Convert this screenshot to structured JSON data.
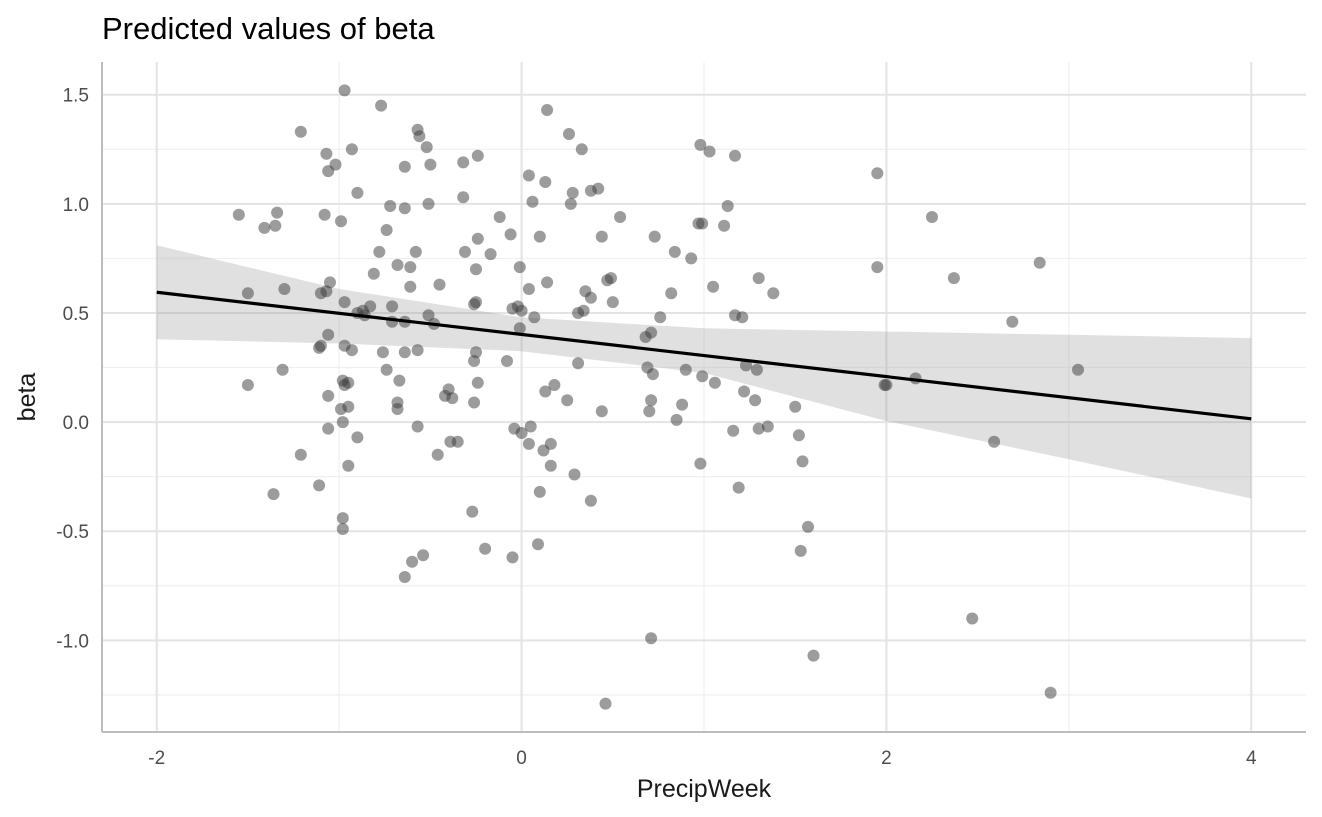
{
  "chart_data": {
    "type": "scatter",
    "title": "Predicted values of beta",
    "xlabel": "PrecipWeek",
    "ylabel": "beta",
    "xlim": [
      -2.3,
      4.3
    ],
    "ylim": [
      -1.42,
      1.65
    ],
    "x_ticks": [
      -2,
      0,
      2,
      4
    ],
    "x_tick_labels": [
      "-2",
      "0",
      "2",
      "4"
    ],
    "y_ticks": [
      1.5,
      1.0,
      0.5,
      0.0,
      -0.5,
      -1.0
    ],
    "y_tick_labels": [
      "1.5",
      "1.0",
      "0.5",
      "0.0",
      "-0.5",
      "-1.0"
    ],
    "grid": true,
    "points": [
      [
        -0.97,
        1.52
      ],
      [
        -0.77,
        1.45
      ],
      [
        -1.21,
        1.33
      ],
      [
        -0.57,
        1.34
      ],
      [
        0.14,
        1.43
      ],
      [
        -1.07,
        1.23
      ],
      [
        -0.93,
        1.25
      ],
      [
        -0.52,
        1.26
      ],
      [
        -0.56,
        1.31
      ],
      [
        0.26,
        1.32
      ],
      [
        0.33,
        1.25
      ],
      [
        0.98,
        1.27
      ],
      [
        1.03,
        1.24
      ],
      [
        1.17,
        1.22
      ],
      [
        -0.24,
        1.22
      ],
      [
        -0.32,
        1.19
      ],
      [
        -1.02,
        1.18
      ],
      [
        -1.06,
        1.15
      ],
      [
        -0.64,
        1.17
      ],
      [
        -0.5,
        1.18
      ],
      [
        0.04,
        1.13
      ],
      [
        0.13,
        1.1
      ],
      [
        1.95,
        1.14
      ],
      [
        -0.9,
        1.05
      ],
      [
        0.28,
        1.05
      ],
      [
        0.38,
        1.06
      ],
      [
        0.42,
        1.07
      ],
      [
        -0.32,
        1.03
      ],
      [
        -0.72,
        0.99
      ],
      [
        -0.64,
        0.98
      ],
      [
        -0.51,
        1.0
      ],
      [
        0.06,
        1.01
      ],
      [
        0.27,
        1.0
      ],
      [
        1.13,
        0.99
      ],
      [
        -1.55,
        0.95
      ],
      [
        -1.34,
        0.96
      ],
      [
        -1.08,
        0.95
      ],
      [
        -0.99,
        0.92
      ],
      [
        -1.41,
        0.89
      ],
      [
        -1.35,
        0.9
      ],
      [
        -0.12,
        0.94
      ],
      [
        0.54,
        0.94
      ],
      [
        0.97,
        0.91
      ],
      [
        0.99,
        0.91
      ],
      [
        1.11,
        0.9
      ],
      [
        2.25,
        0.94
      ],
      [
        -0.74,
        0.88
      ],
      [
        -0.06,
        0.86
      ],
      [
        -0.24,
        0.84
      ],
      [
        0.1,
        0.85
      ],
      [
        0.44,
        0.85
      ],
      [
        0.73,
        0.85
      ],
      [
        -0.78,
        0.78
      ],
      [
        -0.58,
        0.78
      ],
      [
        -0.31,
        0.78
      ],
      [
        -0.17,
        0.77
      ],
      [
        0.84,
        0.78
      ],
      [
        0.93,
        0.75
      ],
      [
        -0.68,
        0.72
      ],
      [
        -0.61,
        0.71
      ],
      [
        -0.25,
        0.7
      ],
      [
        -0.01,
        0.71
      ],
      [
        1.95,
        0.71
      ],
      [
        2.84,
        0.73
      ],
      [
        -1.05,
        0.64
      ],
      [
        -0.81,
        0.68
      ],
      [
        0.14,
        0.64
      ],
      [
        0.49,
        0.66
      ],
      [
        0.47,
        0.65
      ],
      [
        0.68,
        0.39
      ],
      [
        1.3,
        0.66
      ],
      [
        2.37,
        0.66
      ],
      [
        -1.5,
        0.59
      ],
      [
        -1.3,
        0.61
      ],
      [
        -1.1,
        0.59
      ],
      [
        -1.07,
        0.6
      ],
      [
        -0.61,
        0.62
      ],
      [
        -0.45,
        0.63
      ],
      [
        0.04,
        0.61
      ],
      [
        0.35,
        0.6
      ],
      [
        0.38,
        0.57
      ],
      [
        0.5,
        0.55
      ],
      [
        0.82,
        0.59
      ],
      [
        1.05,
        0.62
      ],
      [
        1.38,
        0.59
      ],
      [
        -0.97,
        0.55
      ],
      [
        -0.83,
        0.53
      ],
      [
        -0.87,
        0.51
      ],
      [
        -0.71,
        0.53
      ],
      [
        -0.86,
        0.49
      ],
      [
        -0.9,
        0.5
      ],
      [
        -0.25,
        0.55
      ],
      [
        -0.26,
        0.54
      ],
      [
        -0.05,
        0.52
      ],
      [
        -0.02,
        0.53
      ],
      [
        0.0,
        0.51
      ],
      [
        0.07,
        0.48
      ],
      [
        0.31,
        0.5
      ],
      [
        0.34,
        0.51
      ],
      [
        0.76,
        0.48
      ],
      [
        1.17,
        0.49
      ],
      [
        1.21,
        0.48
      ],
      [
        2.69,
        0.46
      ],
      [
        -1.06,
        0.4
      ],
      [
        -1.1,
        0.35
      ],
      [
        -1.11,
        0.34
      ],
      [
        -0.97,
        0.35
      ],
      [
        -0.93,
        0.33
      ],
      [
        -0.76,
        0.32
      ],
      [
        -0.71,
        0.46
      ],
      [
        -0.64,
        0.46
      ],
      [
        -0.64,
        0.32
      ],
      [
        -0.57,
        0.33
      ],
      [
        -0.48,
        0.45
      ],
      [
        -0.51,
        0.49
      ],
      [
        -0.25,
        0.32
      ],
      [
        -0.26,
        0.28
      ],
      [
        -0.08,
        0.28
      ],
      [
        -0.01,
        0.43
      ],
      [
        0.31,
        0.27
      ],
      [
        0.71,
        0.41
      ],
      [
        0.69,
        0.25
      ],
      [
        0.72,
        0.22
      ],
      [
        0.9,
        0.24
      ],
      [
        0.99,
        0.21
      ],
      [
        1.23,
        0.26
      ],
      [
        1.29,
        0.24
      ],
      [
        -1.5,
        0.17
      ],
      [
        -1.31,
        0.24
      ],
      [
        -0.74,
        0.24
      ],
      [
        -0.98,
        0.19
      ],
      [
        -0.97,
        0.17
      ],
      [
        -0.95,
        0.18
      ],
      [
        -0.67,
        0.19
      ],
      [
        -0.4,
        0.15
      ],
      [
        -0.42,
        0.12
      ],
      [
        -0.38,
        0.11
      ],
      [
        -0.24,
        0.18
      ],
      [
        0.13,
        0.14
      ],
      [
        0.18,
        0.17
      ],
      [
        0.25,
        0.1
      ],
      [
        1.06,
        0.18
      ],
      [
        1.22,
        0.14
      ],
      [
        1.28,
        0.1
      ],
      [
        1.99,
        0.17
      ],
      [
        2.0,
        0.17
      ],
      [
        2.16,
        0.2
      ],
      [
        3.05,
        0.24
      ],
      [
        -1.06,
        0.12
      ],
      [
        -0.99,
        0.06
      ],
      [
        -0.95,
        0.07
      ],
      [
        -0.98,
        0.0
      ],
      [
        -1.06,
        -0.03
      ],
      [
        -0.9,
        -0.07
      ],
      [
        -0.68,
        0.06
      ],
      [
        -0.68,
        0.09
      ],
      [
        -0.57,
        -0.02
      ],
      [
        -0.26,
        0.09
      ],
      [
        -0.04,
        -0.03
      ],
      [
        0.0,
        -0.05
      ],
      [
        0.05,
        -0.02
      ],
      [
        0.04,
        -0.1
      ],
      [
        0.12,
        -0.13
      ],
      [
        0.16,
        -0.1
      ],
      [
        0.44,
        0.05
      ],
      [
        0.7,
        0.05
      ],
      [
        0.71,
        0.1
      ],
      [
        0.85,
        0.01
      ],
      [
        0.88,
        0.08
      ],
      [
        1.16,
        -0.04
      ],
      [
        1.3,
        -0.03
      ],
      [
        1.35,
        -0.02
      ],
      [
        1.5,
        0.07
      ],
      [
        1.52,
        -0.06
      ],
      [
        -1.21,
        -0.15
      ],
      [
        -0.95,
        -0.2
      ],
      [
        -0.46,
        -0.15
      ],
      [
        -0.39,
        -0.09
      ],
      [
        -0.35,
        -0.09
      ],
      [
        0.98,
        -0.19
      ],
      [
        1.54,
        -0.18
      ],
      [
        2.59,
        -0.09
      ],
      [
        -1.11,
        -0.29
      ],
      [
        -1.36,
        -0.33
      ],
      [
        0.1,
        -0.32
      ],
      [
        0.16,
        -0.2
      ],
      [
        0.29,
        -0.24
      ],
      [
        0.38,
        -0.36
      ],
      [
        1.19,
        -0.3
      ],
      [
        -0.98,
        -0.44
      ],
      [
        -0.98,
        -0.49
      ],
      [
        -0.27,
        -0.41
      ],
      [
        1.57,
        -0.48
      ],
      [
        -0.2,
        -0.58
      ],
      [
        -0.05,
        -0.62
      ],
      [
        0.09,
        -0.56
      ],
      [
        -0.54,
        -0.61
      ],
      [
        -0.6,
        -0.64
      ],
      [
        -0.64,
        -0.71
      ],
      [
        1.53,
        -0.59
      ],
      [
        0.71,
        -0.99
      ],
      [
        2.47,
        -0.9
      ],
      [
        1.6,
        -1.07
      ],
      [
        2.9,
        -1.24
      ],
      [
        0.46,
        -1.29
      ]
    ],
    "fit_line": {
      "x": [
        -2,
        4
      ],
      "y": [
        0.595,
        0.015
      ]
    },
    "confidence_band": {
      "x": [
        -2,
        -1,
        0,
        1,
        2,
        3,
        4
      ],
      "upper": [
        0.81,
        0.61,
        0.48,
        0.43,
        0.415,
        0.4,
        0.385
      ],
      "lower": [
        0.38,
        0.36,
        0.325,
        0.225,
        0.005,
        -0.17,
        -0.35
      ]
    }
  }
}
